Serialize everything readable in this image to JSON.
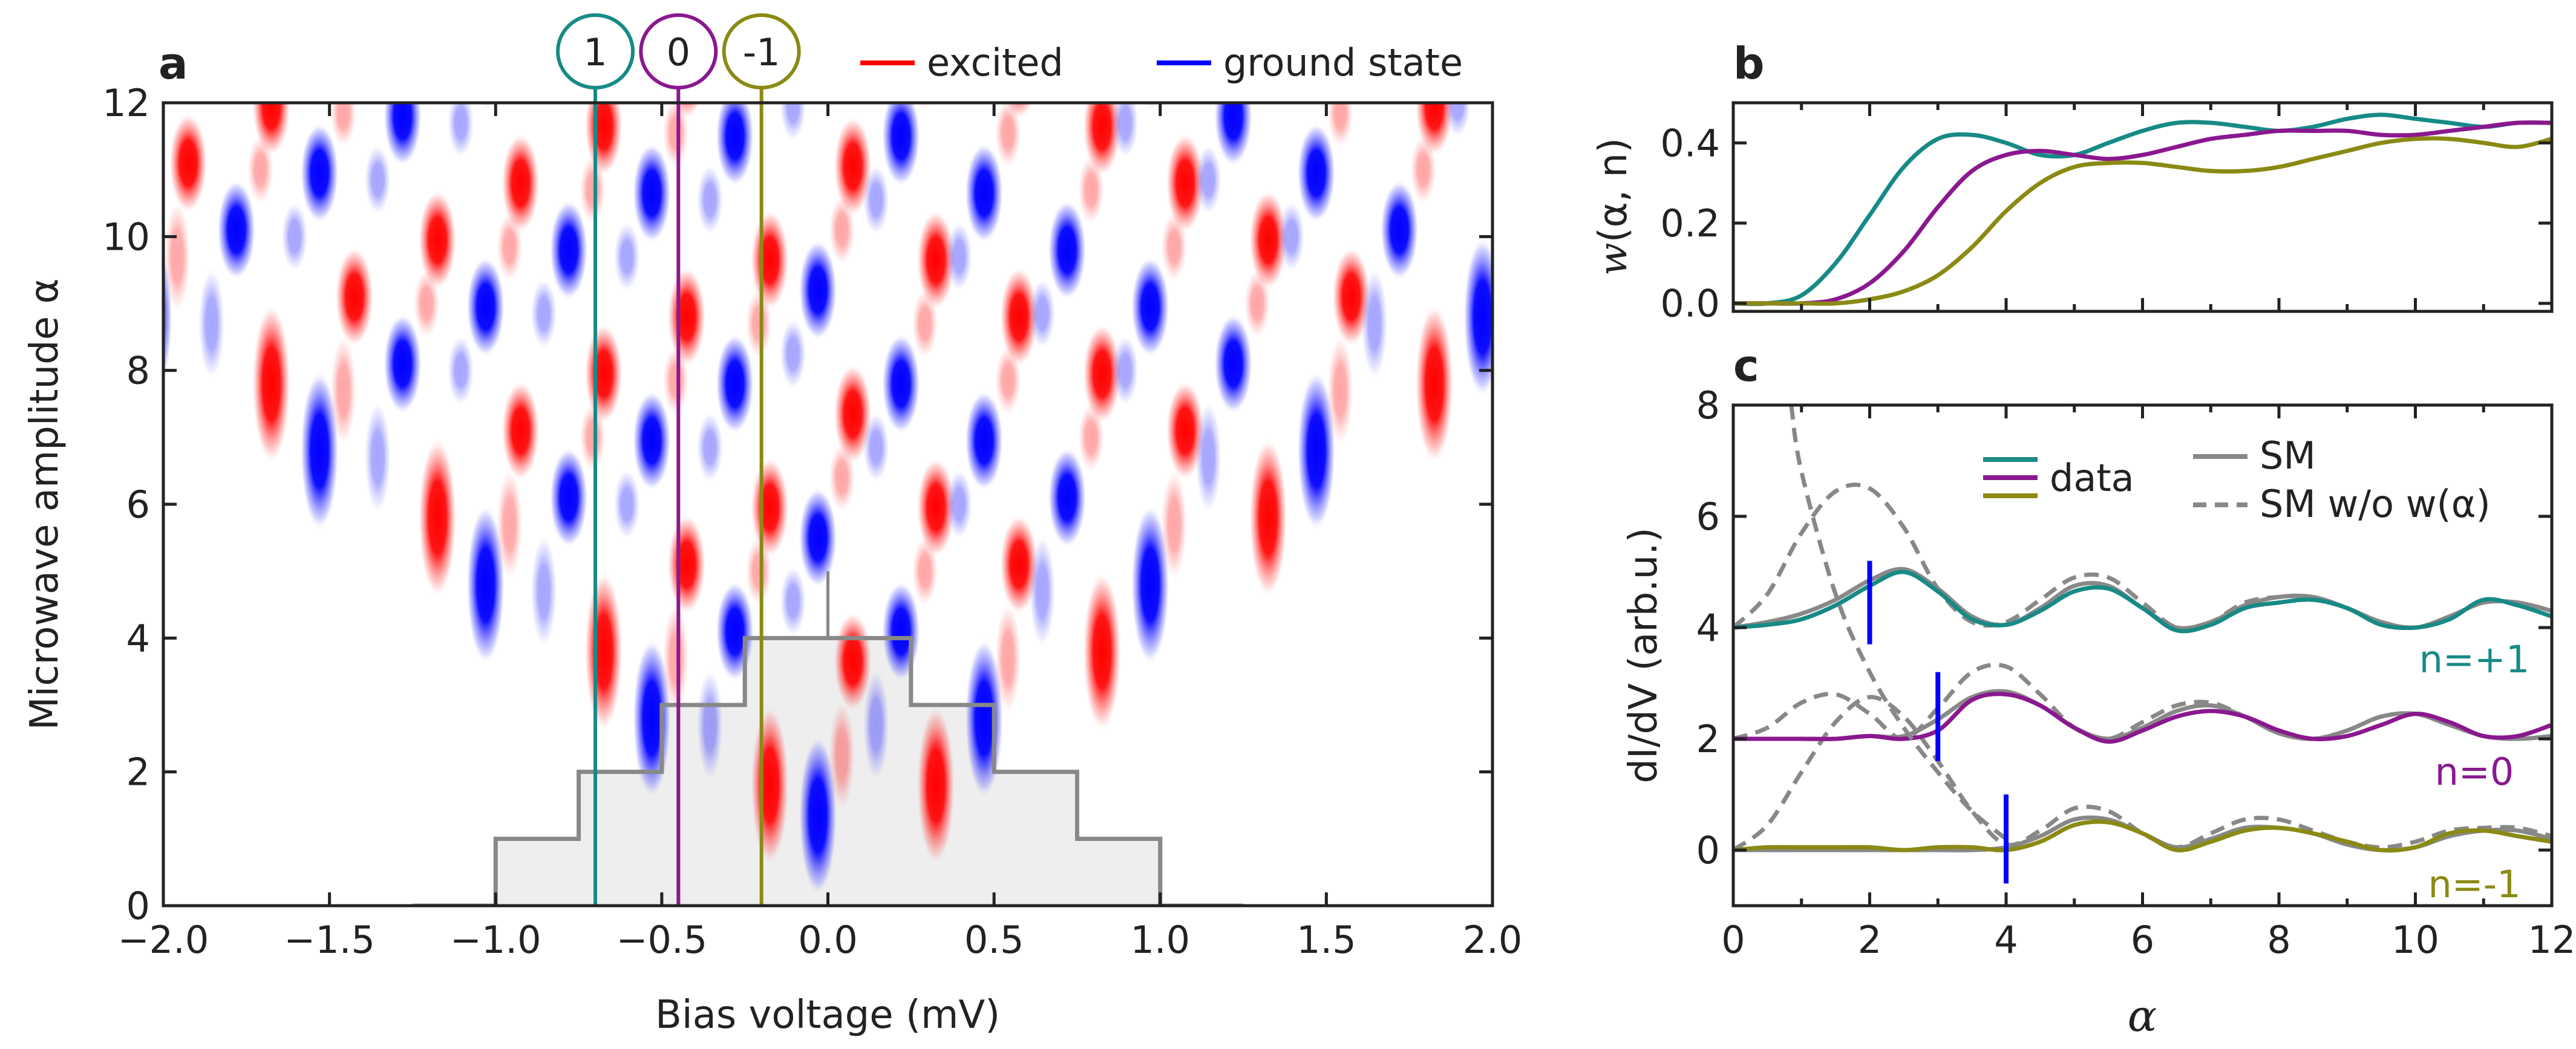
{
  "colors": {
    "excited": "#ff0000",
    "ground": "#0000ff",
    "teal": "#178a86",
    "purple": "#8a188f",
    "olive": "#8a8a14",
    "sm": "#888888",
    "fill": "#eeeeee"
  },
  "panels": {
    "a": {
      "label": "a",
      "xlabel": "Bias voltage (mV)",
      "ylabel": "Microwave amplitude α",
      "xticks": [
        "−2.0",
        "−1.5",
        "−1.0",
        "−0.5",
        "0.0",
        "0.5",
        "1.0",
        "1.5",
        "2.0"
      ],
      "yticks": [
        "0",
        "2",
        "4",
        "6",
        "8",
        "10",
        "12"
      ],
      "legend": {
        "excited": "excited",
        "ground": "ground state"
      },
      "markers": [
        {
          "text": "1",
          "color": "#178a86"
        },
        {
          "text": "0",
          "color": "#8a188f"
        },
        {
          "text": "-1",
          "color": "#8a8a14"
        }
      ]
    },
    "b": {
      "label": "b",
      "ylabel_main": "w",
      "ylabel_args": "(α, n)",
      "yticks": [
        "0.0",
        "0.2",
        "0.4"
      ]
    },
    "c": {
      "label": "c",
      "xlabel": "α",
      "ylabel": "dI/dV (arb.u.)",
      "xticks": [
        "0",
        "2",
        "4",
        "6",
        "8",
        "10",
        "12"
      ],
      "yticks": [
        "0",
        "2",
        "4",
        "6",
        "8"
      ],
      "legend": {
        "data": "data",
        "sm": "SM",
        "sm_wo": "SM w/o w(α)"
      },
      "curve_labels": [
        {
          "text": "n=+1",
          "color": "#178a86"
        },
        {
          "text": "n=0",
          "color": "#8a188f"
        },
        {
          "text": "n=-1",
          "color": "#8a8a14"
        }
      ]
    }
  },
  "chart_data": [
    {
      "type": "heatmap",
      "panel": "a",
      "xlabel": "Bias voltage (mV)",
      "ylabel": "Microwave amplitude α",
      "xlim": [
        -2.0,
        2.0
      ],
      "ylim": [
        0,
        12
      ],
      "series": [
        {
          "name": "excited",
          "color": "#ff0000"
        },
        {
          "name": "ground state",
          "color": "#0000ff"
        }
      ],
      "marker_lines": [
        {
          "label": "1",
          "x": -0.7
        },
        {
          "label": "0",
          "x": -0.45
        },
        {
          "label": "-1",
          "x": -0.2
        }
      ],
      "staircase": [
        {
          "x": -1.25,
          "y": 0
        },
        {
          "x": -1.0,
          "y": 1
        },
        {
          "x": -0.75,
          "y": 2
        },
        {
          "x": -0.5,
          "y": 3
        },
        {
          "x": -0.25,
          "y": 4
        },
        {
          "x": 0.0,
          "y": 4
        },
        {
          "x": 0.25,
          "y": 3
        },
        {
          "x": 0.5,
          "y": 2
        },
        {
          "x": 0.75,
          "y": 1
        },
        {
          "x": 1.0,
          "y": 0
        },
        {
          "x": 1.25,
          "y": 0
        }
      ]
    },
    {
      "type": "line",
      "panel": "b",
      "ylabel": "w(α, n)",
      "xlim": [
        0,
        12
      ],
      "ylim": [
        -0.02,
        0.5
      ],
      "x": [
        0,
        0.5,
        1.0,
        1.5,
        2.0,
        2.5,
        3.0,
        3.5,
        4.0,
        4.5,
        5.0,
        5.5,
        6.0,
        6.5,
        7.0,
        7.5,
        8.0,
        8.5,
        9.0,
        9.5,
        10.0,
        10.5,
        11.0,
        11.5,
        12.0
      ],
      "series": [
        {
          "name": "n=+1",
          "color": "#178a86",
          "values": [
            0.0,
            0.0,
            0.02,
            0.1,
            0.22,
            0.34,
            0.41,
            0.42,
            0.4,
            0.37,
            0.37,
            0.4,
            0.43,
            0.45,
            0.45,
            0.44,
            0.43,
            0.44,
            0.46,
            0.47,
            0.46,
            0.45,
            0.44,
            0.45,
            0.45
          ]
        },
        {
          "name": "n=0",
          "color": "#8a188f",
          "values": [
            0.0,
            0.0,
            0.0,
            0.01,
            0.05,
            0.13,
            0.24,
            0.33,
            0.37,
            0.38,
            0.37,
            0.36,
            0.37,
            0.39,
            0.41,
            0.42,
            0.43,
            0.43,
            0.43,
            0.42,
            0.42,
            0.43,
            0.44,
            0.45,
            0.45
          ]
        },
        {
          "name": "n=-1",
          "color": "#8a8a14",
          "values": [
            0.0,
            0.0,
            0.0,
            0.0,
            0.01,
            0.03,
            0.07,
            0.14,
            0.23,
            0.3,
            0.34,
            0.35,
            0.35,
            0.34,
            0.33,
            0.33,
            0.34,
            0.36,
            0.38,
            0.4,
            0.41,
            0.41,
            0.4,
            0.39,
            0.41
          ]
        }
      ]
    },
    {
      "type": "line",
      "panel": "c",
      "xlabel": "α",
      "ylabel": "dI/dV (arb.u.)",
      "xlim": [
        0,
        12
      ],
      "ylim": [
        -1,
        8
      ],
      "x": [
        0,
        0.5,
        1.0,
        1.5,
        2.0,
        2.5,
        3.0,
        3.5,
        4.0,
        4.5,
        5.0,
        5.5,
        6.0,
        6.5,
        7.0,
        7.5,
        8.0,
        8.5,
        9.0,
        9.5,
        10.0,
        10.5,
        11.0,
        11.5,
        12.0
      ],
      "series": [
        {
          "name": "data n=+1",
          "color": "#178a86",
          "style": "solid",
          "values": [
            4.0,
            4.05,
            4.15,
            4.4,
            4.75,
            5.0,
            4.65,
            4.15,
            4.05,
            4.3,
            4.65,
            4.7,
            4.35,
            3.95,
            4.05,
            4.35,
            4.45,
            4.5,
            4.35,
            4.05,
            4.0,
            4.15,
            4.5,
            4.4,
            4.2
          ]
        },
        {
          "name": "SM n=+1",
          "color": "#888888",
          "style": "solid",
          "values": [
            4.0,
            4.1,
            4.25,
            4.5,
            4.85,
            5.05,
            4.7,
            4.2,
            4.05,
            4.35,
            4.75,
            4.75,
            4.35,
            4.0,
            4.1,
            4.4,
            4.55,
            4.55,
            4.35,
            4.1,
            4.0,
            4.2,
            4.45,
            4.45,
            4.3
          ]
        },
        {
          "name": "SM w/o w(α) n=+1",
          "color": "#888888",
          "style": "dashed",
          "values": [
            4.0,
            4.6,
            5.7,
            6.45,
            6.5,
            5.8,
            4.7,
            4.1,
            4.1,
            4.5,
            4.9,
            4.9,
            4.45,
            4.0,
            4.1,
            4.45,
            4.55,
            4.55,
            4.35,
            4.1,
            4.0,
            4.2,
            4.45,
            4.45,
            4.3
          ]
        },
        {
          "name": "data n=0",
          "color": "#8a188f",
          "style": "solid",
          "values": [
            2.0,
            2.0,
            2.0,
            2.0,
            2.05,
            2.0,
            2.15,
            2.7,
            2.8,
            2.6,
            2.2,
            1.95,
            2.15,
            2.4,
            2.5,
            2.4,
            2.15,
            2.0,
            2.05,
            2.25,
            2.45,
            2.3,
            2.05,
            2.05,
            2.25
          ]
        },
        {
          "name": "SM n=0",
          "color": "#888888",
          "style": "solid",
          "values": [
            2.0,
            2.0,
            2.0,
            2.0,
            2.05,
            2.05,
            2.35,
            2.75,
            2.85,
            2.6,
            2.2,
            2.0,
            2.2,
            2.5,
            2.6,
            2.4,
            2.1,
            2.0,
            2.15,
            2.4,
            2.45,
            2.25,
            2.05,
            2.0,
            2.05
          ]
        },
        {
          "name": "SM w/o w(α) n=0",
          "color": "#888888",
          "style": "dashed",
          "values": [
            2.0,
            2.2,
            2.65,
            2.8,
            2.45,
            2.0,
            2.55,
            3.2,
            3.3,
            2.8,
            2.2,
            2.0,
            2.3,
            2.6,
            2.65,
            2.4,
            2.1,
            2.0,
            2.15,
            2.4,
            2.45,
            2.25,
            2.05,
            2.0,
            2.05
          ]
        },
        {
          "name": "data n=-1",
          "color": "#8a8a14",
          "style": "solid",
          "values": [
            0.0,
            0.05,
            0.05,
            0.05,
            0.05,
            0.0,
            0.05,
            0.05,
            0.0,
            0.15,
            0.45,
            0.5,
            0.3,
            0.0,
            0.15,
            0.35,
            0.4,
            0.3,
            0.15,
            0.0,
            0.05,
            0.3,
            0.35,
            0.25,
            0.15
          ]
        },
        {
          "name": "SM n=-1",
          "color": "#888888",
          "style": "solid",
          "values": [
            0.0,
            0.0,
            0.0,
            0.0,
            0.0,
            0.0,
            0.0,
            0.0,
            0.05,
            0.25,
            0.55,
            0.55,
            0.3,
            0.05,
            0.2,
            0.4,
            0.4,
            0.3,
            0.1,
            0.0,
            0.05,
            0.25,
            0.35,
            0.35,
            0.2
          ]
        },
        {
          "name": "SM w/o w(α) n=-1",
          "color": "#888888",
          "style": "dashed",
          "values": [
            0.0,
            0.45,
            1.4,
            2.3,
            2.75,
            2.4,
            1.6,
            0.7,
            0.1,
            0.35,
            0.75,
            0.7,
            0.3,
            0.05,
            0.3,
            0.55,
            0.55,
            0.35,
            0.15,
            0.05,
            0.15,
            0.35,
            0.4,
            0.4,
            0.25
          ]
        }
      ],
      "extra_dashed": {
        "name": "SM w/o w(α) divergence",
        "x": [
          0.85,
          1.0,
          1.5,
          2.0,
          2.5,
          3.0,
          3.5,
          4.0
        ],
        "values": [
          8.0,
          6.8,
          4.6,
          3.2,
          2.2,
          1.4,
          0.7,
          0.2
        ]
      },
      "threshold_markers": [
        {
          "name": "n=+1",
          "alpha": 2.0,
          "y_from": 3.7,
          "y_to": 5.2
        },
        {
          "name": "n=0",
          "alpha": 3.0,
          "y_from": 1.6,
          "y_to": 3.2
        },
        {
          "name": "n=-1",
          "alpha": 4.0,
          "y_from": -0.6,
          "y_to": 1.0
        }
      ]
    }
  ]
}
